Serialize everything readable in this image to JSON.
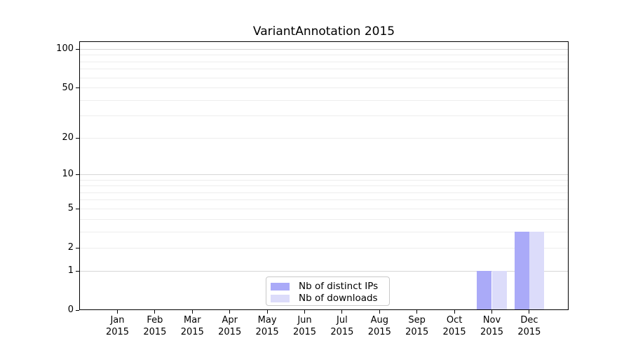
{
  "title": "VariantAnnotation 2015",
  "chart_data": {
    "type": "bar",
    "title": "VariantAnnotation 2015",
    "x_axis": {
      "categories": [
        "Jan",
        "Feb",
        "Mar",
        "Apr",
        "May",
        "Jun",
        "Jul",
        "Aug",
        "Sep",
        "Oct",
        "Nov",
        "Dec"
      ],
      "year_label": "2015"
    },
    "y_axis": {
      "scale": "log1p",
      "ticks": [
        0,
        1,
        2,
        5,
        10,
        20,
        50,
        100
      ],
      "major_gridlines": [
        1,
        10,
        100
      ],
      "minor_gridlines": [
        2,
        3,
        4,
        5,
        6,
        7,
        8,
        9,
        20,
        30,
        40,
        50,
        60,
        70,
        80,
        90
      ],
      "top_value": 115
    },
    "series": [
      {
        "name": "Nb of distinct IPs",
        "color": "#aaaaf8",
        "values": [
          0,
          0,
          0,
          0,
          0,
          0,
          0,
          0,
          0,
          0,
          1,
          3
        ]
      },
      {
        "name": "Nb of downloads",
        "color": "#dcdcfa",
        "values": [
          0,
          0,
          0,
          0,
          0,
          0,
          0,
          0,
          0,
          0,
          1,
          3
        ]
      }
    ],
    "legend": {
      "position": "lower center",
      "items": [
        "Nb of distinct IPs",
        "Nb of downloads"
      ]
    },
    "grid": true,
    "colors": {
      "axis": "#000000",
      "major_grid": "#d6d6d6",
      "minor_grid": "#ededed",
      "text": "#000000",
      "background": "#ffffff"
    }
  }
}
